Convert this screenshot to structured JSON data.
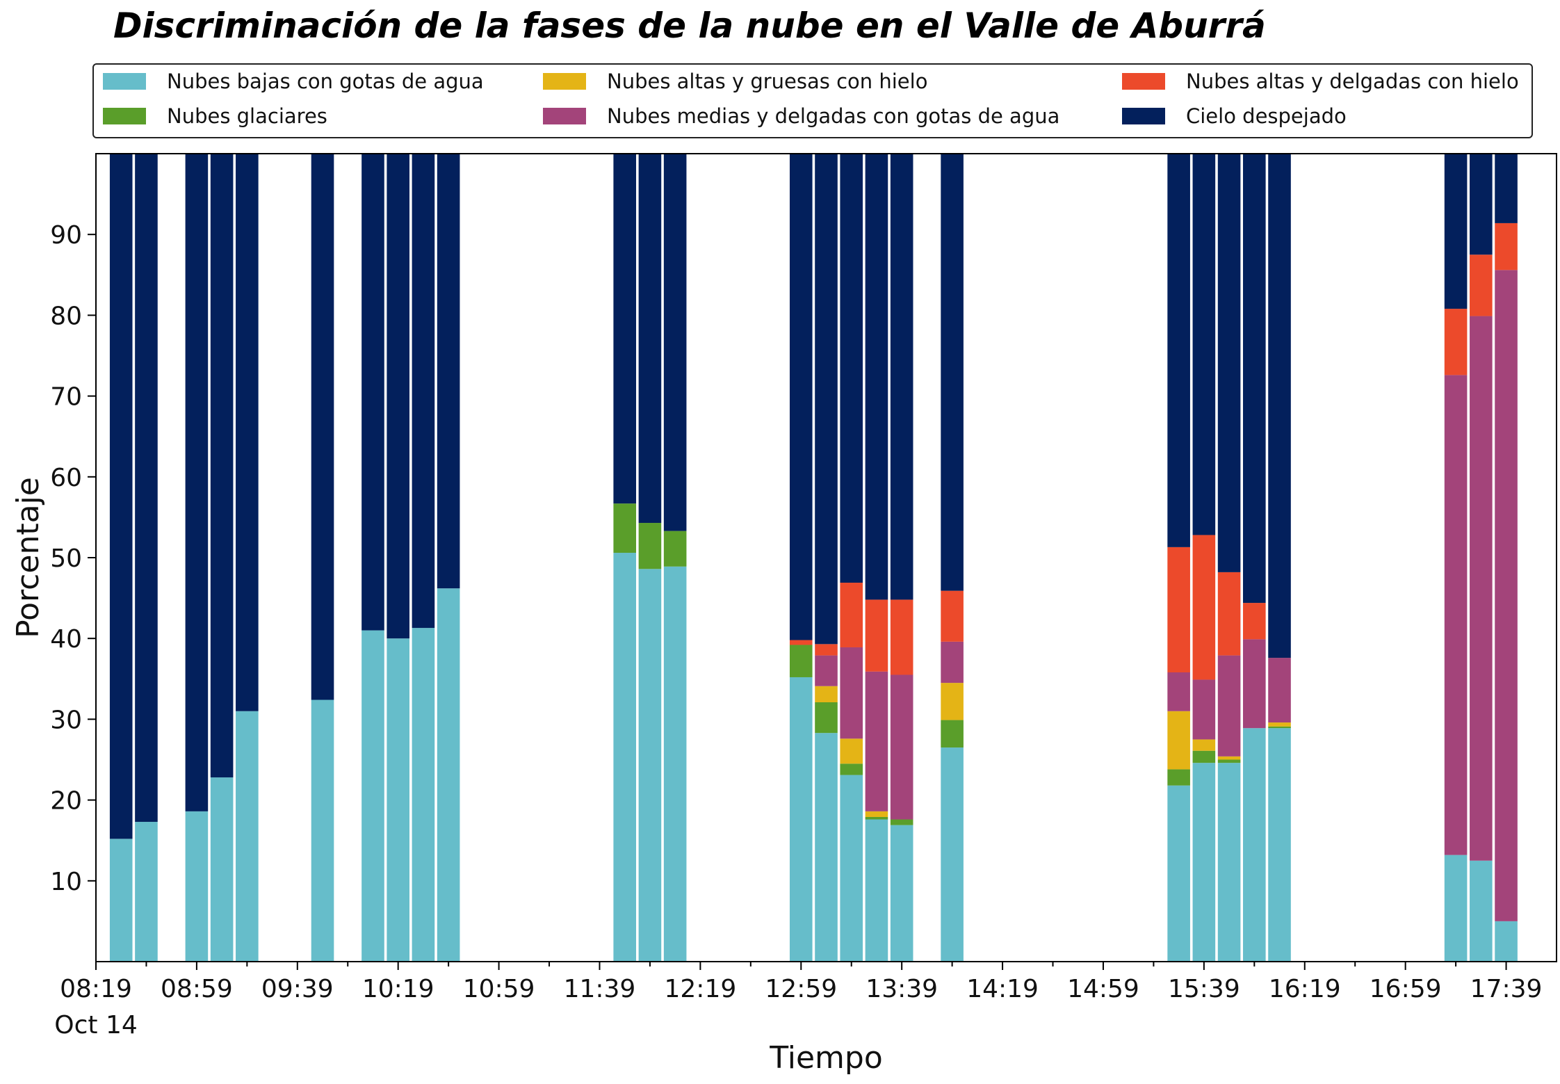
{
  "title": "Discriminación de la fases de la nube en el Valle de Aburrá",
  "chart_data": {
    "type": "bar",
    "stacked": true,
    "title": "Discriminación de la fases de la nube en el Valle de Aburrá",
    "xlabel": "Tiempo",
    "ylabel": "Porcentaje",
    "ylim": [
      0,
      100
    ],
    "yticks": [
      10,
      20,
      30,
      40,
      50,
      60,
      70,
      80,
      90
    ],
    "xlim": [
      "08:19",
      "17:59"
    ],
    "xticks": [
      "08:19",
      "08:59",
      "09:39",
      "10:19",
      "10:59",
      "11:39",
      "12:19",
      "12:59",
      "13:39",
      "14:19",
      "14:59",
      "15:39",
      "16:19",
      "16:59",
      "17:39"
    ],
    "x_date_label": "Oct 14",
    "grid": false,
    "legend_position": "top, outside plot, 3 columns",
    "x": [
      "08:29",
      "08:39",
      "08:59",
      "09:09",
      "09:19",
      "09:49",
      "10:09",
      "10:19",
      "10:29",
      "10:39",
      "11:49",
      "11:59",
      "12:09",
      "12:59",
      "13:09",
      "13:19",
      "13:29",
      "13:39",
      "13:59",
      "15:29",
      "15:39",
      "15:49",
      "15:59",
      "16:09",
      "17:19",
      "17:29",
      "17:39"
    ],
    "series": [
      {
        "name": "Nubes bajas con gotas de agua",
        "color": "#66bdca",
        "values": [
          15.2,
          17.3,
          18.6,
          22.8,
          31.0,
          32.4,
          41.0,
          40.0,
          41.3,
          46.2,
          50.6,
          48.6,
          48.9,
          35.2,
          28.3,
          23.1,
          17.6,
          16.9,
          26.5,
          21.8,
          24.6,
          24.6,
          28.9,
          28.9,
          13.2,
          12.5,
          5.0
        ]
      },
      {
        "name": "Nubes glaciares",
        "color": "#5a9e2a",
        "values": [
          0,
          0,
          0,
          0,
          0,
          0,
          0,
          0,
          0,
          0,
          6.1,
          5.7,
          4.4,
          4.0,
          3.8,
          1.4,
          0.3,
          0.7,
          3.4,
          2.0,
          1.5,
          0.4,
          0,
          0.2,
          0,
          0,
          0
        ]
      },
      {
        "name": "Nubes altas y gruesas con hielo",
        "color": "#e4b416",
        "values": [
          0,
          0,
          0,
          0,
          0,
          0,
          0,
          0,
          0,
          0,
          0,
          0,
          0,
          0,
          2.0,
          3.1,
          0.7,
          0,
          4.6,
          7.2,
          1.4,
          0.4,
          0,
          0.5,
          0,
          0,
          0
        ]
      },
      {
        "name": "Nubes medias y delgadas con gotas de agua",
        "color": "#a3447a",
        "values": [
          0,
          0,
          0,
          0,
          0,
          0,
          0,
          0,
          0,
          0,
          0,
          0,
          0,
          0,
          3.8,
          11.3,
          17.3,
          17.9,
          5.1,
          4.8,
          7.4,
          12.5,
          11.0,
          8.0,
          59.4,
          67.4,
          80.6
        ]
      },
      {
        "name": "Nubes altas y delgadas con hielo",
        "color": "#ec4a2b",
        "values": [
          0,
          0,
          0,
          0,
          0,
          0,
          0,
          0,
          0,
          0,
          0,
          0,
          0,
          0.6,
          1.4,
          8.0,
          8.9,
          9.3,
          6.3,
          15.5,
          17.9,
          10.3,
          4.5,
          0,
          8.2,
          7.6,
          5.8
        ]
      },
      {
        "name": "Cielo despejado",
        "color": "#03205c",
        "values": [
          84.8,
          82.7,
          81.4,
          77.2,
          69.0,
          67.6,
          59.0,
          60.0,
          58.7,
          53.8,
          43.3,
          45.7,
          46.7,
          60.2,
          60.7,
          53.1,
          55.2,
          55.2,
          54.1,
          48.7,
          47.2,
          51.8,
          55.6,
          62.4,
          19.2,
          12.5,
          8.6
        ]
      }
    ]
  }
}
